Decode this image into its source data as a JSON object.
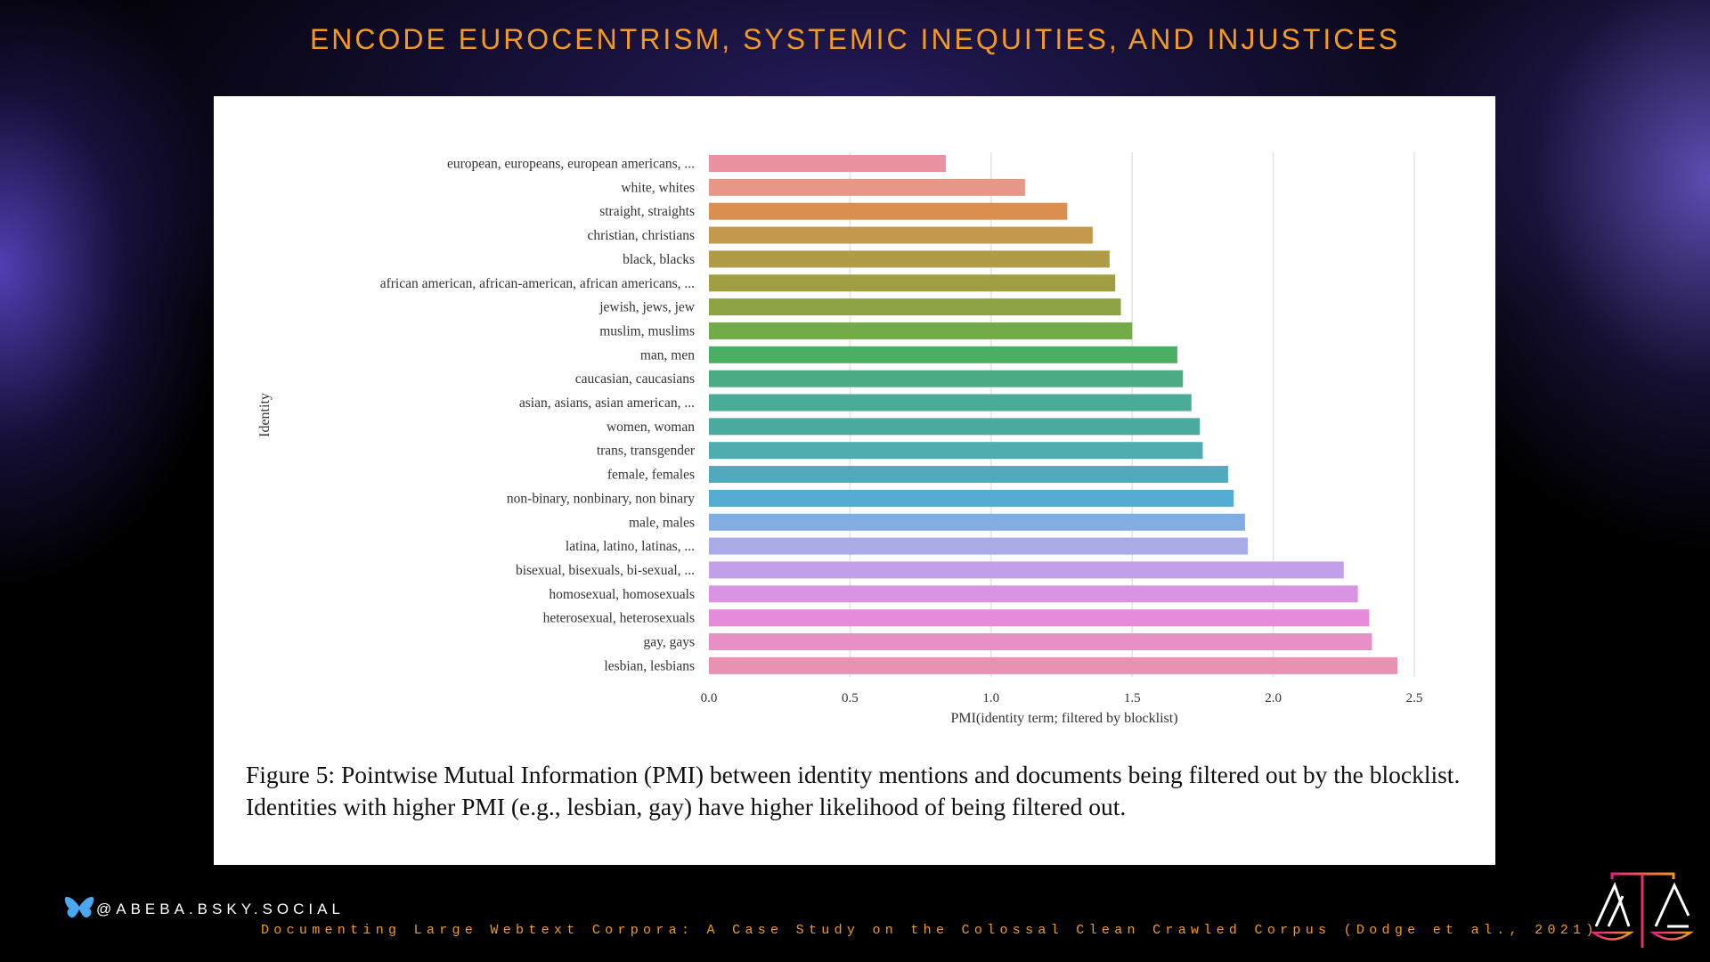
{
  "slide": {
    "title": "ENCODE EUROCENTRISM, SYSTEMIC INEQUITIES, AND INJUSTICES",
    "handle": "@ABEBA.BSKY.SOCIAL",
    "citation": "Documenting Large Webtext Corpora: A Case Study on the Colossal Clean Crawled Corpus (Dodge et al., 2021)",
    "caption": "Figure 5: Pointwise Mutual Information (PMI) between identity mentions and documents being filtered out by the blocklist. Identities with higher PMI (e.g., lesbian, gay) have higher likelihood of being filtered out.",
    "title_color": "#f39a1f"
  },
  "chart_data": {
    "type": "bar",
    "orientation": "horizontal",
    "title": "",
    "xlabel": "PMI(identity term; filtered by blocklist)",
    "ylabel": "Identity",
    "xlim": [
      0,
      2.5
    ],
    "xticks": [
      "0.0",
      "0.5",
      "1.0",
      "1.5",
      "2.0",
      "2.5"
    ],
    "grid": "vertical",
    "categories": [
      "european, europeans, european americans, ...",
      "white, whites",
      "straight, straights",
      "christian, christians",
      "black, blacks",
      "african american, african-american, african americans, ...",
      "jewish, jews, jew",
      "muslim, muslims",
      "man, men",
      "caucasian, caucasians",
      "asian, asians, asian american, ...",
      "women, woman",
      "trans, transgender",
      "female, females",
      "non-binary, nonbinary, non binary",
      "male, males",
      "latina, latino, latinas, ...",
      "bisexual, bisexuals, bi-sexual, ...",
      "homosexual, homosexuals",
      "heterosexual, heterosexuals",
      "gay, gays",
      "lesbian, lesbians"
    ],
    "values": [
      0.84,
      1.12,
      1.27,
      1.36,
      1.42,
      1.44,
      1.46,
      1.5,
      1.66,
      1.68,
      1.71,
      1.74,
      1.75,
      1.84,
      1.86,
      1.9,
      1.91,
      2.25,
      2.3,
      2.34,
      2.35,
      2.44
    ],
    "colors": [
      "#e8939f",
      "#e89687",
      "#da8f4e",
      "#c39a4d",
      "#b09b46",
      "#a09d42",
      "#8ea343",
      "#72ab47",
      "#4aae63",
      "#4aab85",
      "#4aab96",
      "#4cab9f",
      "#4eabae",
      "#50a9bd",
      "#55acd2",
      "#82ade2",
      "#a9aae8",
      "#c39fe8",
      "#d894e3",
      "#e68bd9",
      "#e88fc6",
      "#e892b3"
    ]
  }
}
